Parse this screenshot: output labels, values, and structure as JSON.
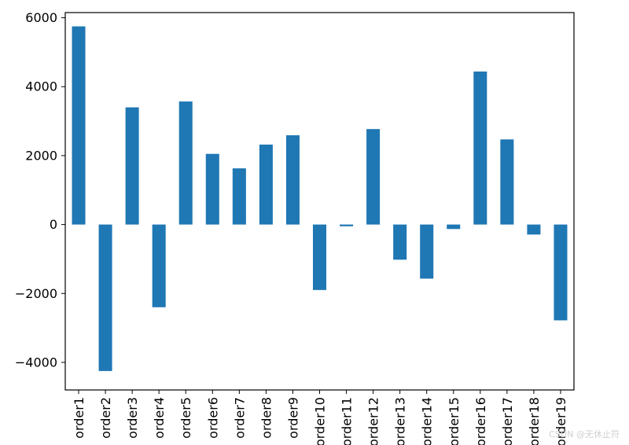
{
  "chart_data": {
    "type": "bar",
    "categories": [
      "order1",
      "order2",
      "order3",
      "order4",
      "order5",
      "order6",
      "order7",
      "order8",
      "order9",
      "order10",
      "order11",
      "order12",
      "order13",
      "order14",
      "order15",
      "order16",
      "order17",
      "order18",
      "order19"
    ],
    "values": [
      5750,
      -4250,
      3400,
      -2400,
      3570,
      2050,
      1630,
      2320,
      2590,
      -1900,
      -50,
      2770,
      -1020,
      -1570,
      -130,
      4440,
      2470,
      -290,
      -2780
    ],
    "ylim": [
      -4800,
      6150
    ],
    "yticks": [
      -4000,
      -2000,
      0,
      2000,
      4000,
      6000
    ],
    "ytick_labels": [
      "−4000",
      "−2000",
      "0",
      "2000",
      "4000",
      "6000"
    ],
    "title": "",
    "xlabel": "",
    "ylabel": "",
    "grid": false,
    "bar_color": "#1f77b4"
  },
  "watermark": "CSDN @无休止符"
}
